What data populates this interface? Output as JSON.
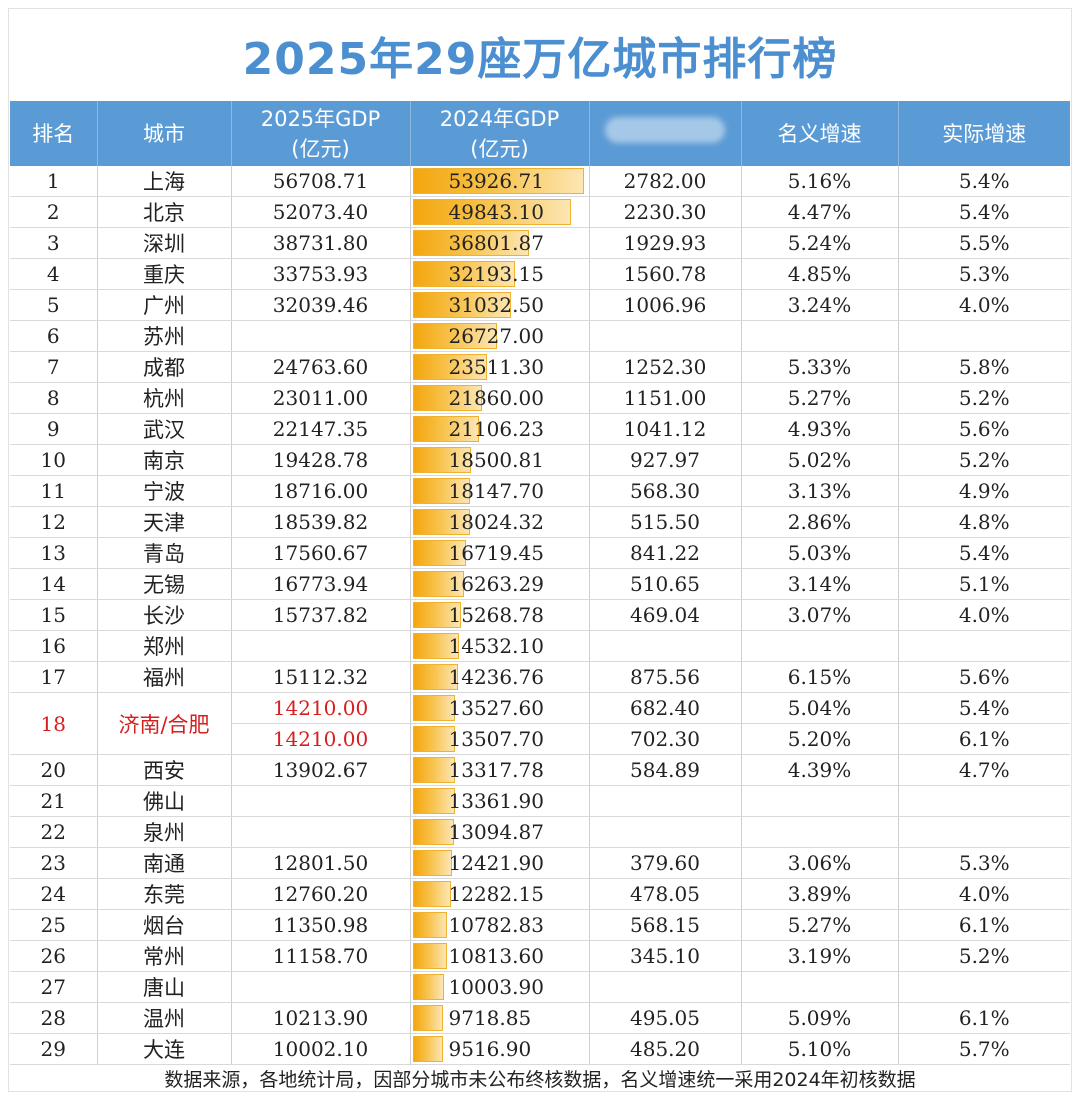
{
  "title": "2025年29座万亿城市排行榜",
  "headers": {
    "rank": "排名",
    "city": "城市",
    "gdp2025_line1": "2025年GDP",
    "gdp2025_line2": "(亿元)",
    "gdp2024_line1": "2024年GDP",
    "gdp2024_line2": "(亿元)",
    "nominal_growth": "名义增速",
    "real_growth": "实际增速"
  },
  "rows": [
    {
      "rank": "1",
      "city": "上海",
      "gdp2025": "56708.71",
      "gdp2024": "53926.71",
      "increase": "2782.00",
      "nominal": "5.16%",
      "real": "5.4%"
    },
    {
      "rank": "2",
      "city": "北京",
      "gdp2025": "52073.40",
      "gdp2024": "49843.10",
      "increase": "2230.30",
      "nominal": "4.47%",
      "real": "5.4%"
    },
    {
      "rank": "3",
      "city": "深圳",
      "gdp2025": "38731.80",
      "gdp2024": "36801.87",
      "increase": "1929.93",
      "nominal": "5.24%",
      "real": "5.5%"
    },
    {
      "rank": "4",
      "city": "重庆",
      "gdp2025": "33753.93",
      "gdp2024": "32193.15",
      "increase": "1560.78",
      "nominal": "4.85%",
      "real": "5.3%"
    },
    {
      "rank": "5",
      "city": "广州",
      "gdp2025": "32039.46",
      "gdp2024": "31032.50",
      "increase": "1006.96",
      "nominal": "3.24%",
      "real": "4.0%"
    },
    {
      "rank": "6",
      "city": "苏州",
      "gdp2025": "",
      "gdp2024": "26727.00",
      "increase": "",
      "nominal": "",
      "real": ""
    },
    {
      "rank": "7",
      "city": "成都",
      "gdp2025": "24763.60",
      "gdp2024": "23511.30",
      "increase": "1252.30",
      "nominal": "5.33%",
      "real": "5.8%"
    },
    {
      "rank": "8",
      "city": "杭州",
      "gdp2025": "23011.00",
      "gdp2024": "21860.00",
      "increase": "1151.00",
      "nominal": "5.27%",
      "real": "5.2%"
    },
    {
      "rank": "9",
      "city": "武汉",
      "gdp2025": "22147.35",
      "gdp2024": "21106.23",
      "increase": "1041.12",
      "nominal": "4.93%",
      "real": "5.6%"
    },
    {
      "rank": "10",
      "city": "南京",
      "gdp2025": "19428.78",
      "gdp2024": "18500.81",
      "increase": "927.97",
      "nominal": "5.02%",
      "real": "5.2%"
    },
    {
      "rank": "11",
      "city": "宁波",
      "gdp2025": "18716.00",
      "gdp2024": "18147.70",
      "increase": "568.30",
      "nominal": "3.13%",
      "real": "4.9%"
    },
    {
      "rank": "12",
      "city": "天津",
      "gdp2025": "18539.82",
      "gdp2024": "18024.32",
      "increase": "515.50",
      "nominal": "2.86%",
      "real": "4.8%"
    },
    {
      "rank": "13",
      "city": "青岛",
      "gdp2025": "17560.67",
      "gdp2024": "16719.45",
      "increase": "841.22",
      "nominal": "5.03%",
      "real": "5.4%"
    },
    {
      "rank": "14",
      "city": "无锡",
      "gdp2025": "16773.94",
      "gdp2024": "16263.29",
      "increase": "510.65",
      "nominal": "3.14%",
      "real": "5.1%"
    },
    {
      "rank": "15",
      "city": "长沙",
      "gdp2025": "15737.82",
      "gdp2024": "15268.78",
      "increase": "469.04",
      "nominal": "3.07%",
      "real": "4.0%"
    },
    {
      "rank": "16",
      "city": "郑州",
      "gdp2025": "",
      "gdp2024": "14532.10",
      "increase": "",
      "nominal": "",
      "real": ""
    },
    {
      "rank": "17",
      "city": "福州",
      "gdp2025": "15112.32",
      "gdp2024": "14236.76",
      "increase": "875.56",
      "nominal": "6.15%",
      "real": "5.6%"
    },
    {
      "rank": "18",
      "city": "济南/合肥",
      "gdp2025": "14210.00",
      "gdp2024": "13527.60",
      "increase": "682.40",
      "nominal": "5.04%",
      "real": "5.4%"
    },
    {
      "rank": "",
      "city": "",
      "gdp2025": "14210.00",
      "gdp2024": "13507.70",
      "increase": "702.30",
      "nominal": "5.20%",
      "real": "6.1%"
    },
    {
      "rank": "20",
      "city": "西安",
      "gdp2025": "13902.67",
      "gdp2024": "13317.78",
      "increase": "584.89",
      "nominal": "4.39%",
      "real": "4.7%"
    },
    {
      "rank": "21",
      "city": "佛山",
      "gdp2025": "",
      "gdp2024": "13361.90",
      "increase": "",
      "nominal": "",
      "real": ""
    },
    {
      "rank": "22",
      "city": "泉州",
      "gdp2025": "",
      "gdp2024": "13094.87",
      "increase": "",
      "nominal": "",
      "real": ""
    },
    {
      "rank": "23",
      "city": "南通",
      "gdp2025": "12801.50",
      "gdp2024": "12421.90",
      "increase": "379.60",
      "nominal": "3.06%",
      "real": "5.3%"
    },
    {
      "rank": "24",
      "city": "东莞",
      "gdp2025": "12760.20",
      "gdp2024": "12282.15",
      "increase": "478.05",
      "nominal": "3.89%",
      "real": "4.0%"
    },
    {
      "rank": "25",
      "city": "烟台",
      "gdp2025": "11350.98",
      "gdp2024": "10782.83",
      "increase": "568.15",
      "nominal": "5.27%",
      "real": "6.1%"
    },
    {
      "rank": "26",
      "city": "常州",
      "gdp2025": "11158.70",
      "gdp2024": "10813.60",
      "increase": "345.10",
      "nominal": "3.19%",
      "real": "5.2%"
    },
    {
      "rank": "27",
      "city": "唐山",
      "gdp2025": "",
      "gdp2024": "10003.90",
      "increase": "",
      "nominal": "",
      "real": ""
    },
    {
      "rank": "28",
      "city": "温州",
      "gdp2025": "10213.90",
      "gdp2024": "9718.85",
      "increase": "495.05",
      "nominal": "5.09%",
      "real": "6.1%"
    },
    {
      "rank": "29",
      "city": "大连",
      "gdp2025": "10002.10",
      "gdp2024": "9516.90",
      "increase": "485.20",
      "nominal": "5.10%",
      "real": "5.7%"
    }
  ],
  "colors": {
    "title": "#4b8fd0",
    "header_bg": "#5b9bd5",
    "highlight_text": "#d62020",
    "bar": "#f3a60e"
  },
  "footer": "数据来源，各地统计局，因部分城市未公布终核数据，名义增速统一采用2024年初核数据"
}
